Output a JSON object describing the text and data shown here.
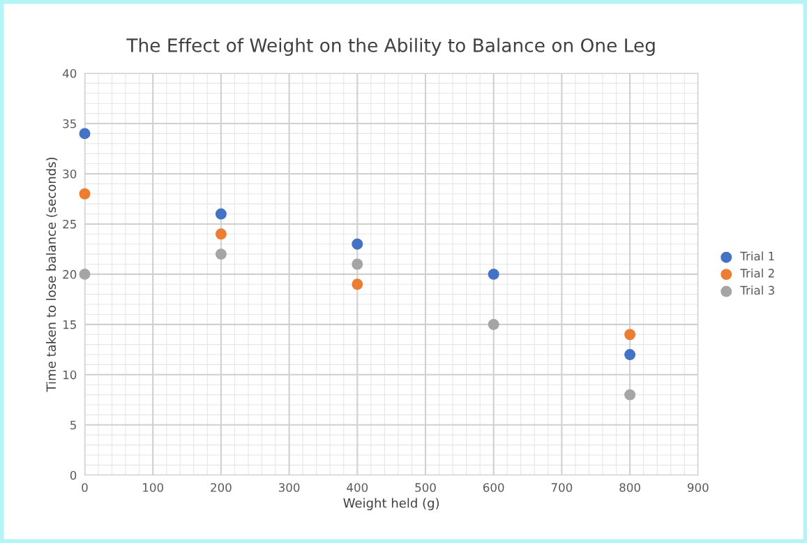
{
  "chart_data": {
    "type": "scatter",
    "title": "The Effect of Weight on the Ability to Balance on One Leg",
    "xlabel": "Weight held (g)",
    "ylabel": "Time taken to lose balance (seconds)",
    "x": [
      0,
      200,
      400,
      600,
      800
    ],
    "series": [
      {
        "name": "Trial 1",
        "color": "#4472c4",
        "values": [
          34,
          26,
          23,
          20,
          12
        ]
      },
      {
        "name": "Trial 2",
        "color": "#ed7d31",
        "values": [
          28,
          24,
          19,
          null,
          14
        ]
      },
      {
        "name": "Trial 3",
        "color": "#a5a5a5",
        "values": [
          20,
          22,
          21,
          15,
          8
        ]
      }
    ],
    "xlim": [
      0,
      900
    ],
    "xticks": [
      0,
      100,
      200,
      300,
      400,
      500,
      600,
      700,
      800,
      900
    ],
    "ylim": [
      0,
      40
    ],
    "yticks": [
      0,
      5,
      10,
      15,
      20,
      25,
      30,
      35,
      40
    ],
    "grid": true,
    "legend": "right",
    "marker": "circle"
  }
}
